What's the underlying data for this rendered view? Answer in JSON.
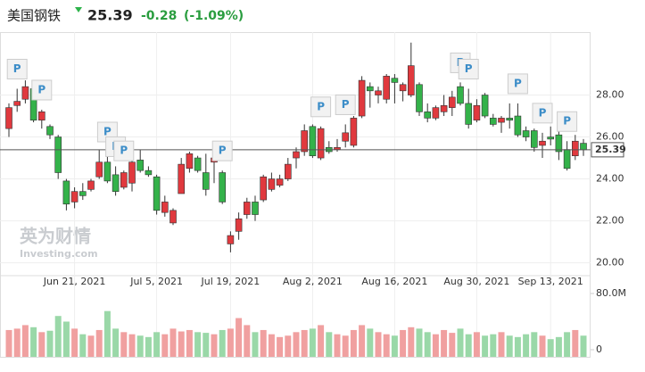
{
  "header": {
    "title": "美国钢铁",
    "price": 25.39,
    "change": -0.28,
    "change_percent": "(-1.09%)"
  },
  "watermark": {
    "brand": "英为财情",
    "site": "Investing.com"
  },
  "chart_data": {
    "type": "candlestick",
    "categories": [
      null,
      null,
      null,
      null,
      null,
      null,
      null,
      null,
      "Jun 21, 2021",
      null,
      null,
      null,
      null,
      null,
      null,
      null,
      null,
      null,
      "Jul 5, 2021",
      null,
      null,
      null,
      null,
      null,
      null,
      null,
      null,
      "Jul 19, 2021",
      null,
      null,
      null,
      null,
      null,
      null,
      null,
      null,
      null,
      "Aug 2, 2021",
      null,
      null,
      null,
      null,
      null,
      null,
      null,
      null,
      null,
      "Aug 16, 2021",
      null,
      null,
      null,
      null,
      null,
      null,
      null,
      null,
      null,
      "Aug 30, 2021",
      null,
      null,
      null,
      null,
      null,
      null,
      null,
      null,
      "Sep 13, 2021",
      null,
      null,
      null,
      null
    ],
    "open": [
      26.4,
      27.5,
      27.8,
      28.3,
      26.8,
      26.5,
      26.0,
      23.9,
      22.9,
      23.4,
      23.5,
      24.1,
      24.8,
      24.2,
      23.6,
      23.8,
      24.9,
      24.4,
      24.1,
      22.4,
      21.9,
      23.3,
      24.5,
      25.0,
      24.3,
      24.8,
      24.3,
      20.9,
      21.5,
      22.3,
      22.9,
      23.0,
      23.5,
      23.7,
      24.0,
      25.0,
      25.3,
      26.5,
      25.0,
      25.5,
      25.4,
      25.8,
      25.6,
      27.0,
      28.4,
      28.0,
      27.8,
      28.8,
      28.2,
      28.0,
      28.5,
      27.2,
      26.9,
      27.2,
      27.4,
      28.4,
      27.6,
      26.8,
      28.0,
      26.9,
      26.7,
      26.9,
      27.0,
      26.3,
      26.3,
      25.6,
      26.0,
      26.1,
      25.4,
      25.1,
      25.7
    ],
    "high": [
      27.6,
      28.3,
      28.7,
      28.4,
      27.3,
      26.6,
      26.1,
      24.0,
      23.6,
      23.8,
      24.0,
      25.4,
      25.3,
      24.6,
      24.4,
      25.0,
      25.4,
      24.6,
      24.2,
      23.2,
      22.6,
      25.0,
      25.3,
      25.1,
      25.2,
      25.2,
      24.4,
      21.5,
      22.4,
      23.1,
      23.2,
      24.2,
      24.3,
      24.2,
      25.0,
      25.5,
      26.6,
      26.6,
      26.5,
      25.8,
      25.9,
      26.6,
      27.0,
      28.9,
      28.6,
      28.4,
      29.0,
      29.0,
      28.6,
      30.5,
      28.6,
      27.6,
      27.5,
      28.0,
      28.2,
      28.6,
      28.3,
      27.8,
      28.1,
      27.1,
      27.0,
      27.6,
      27.6,
      26.5,
      26.4,
      26.2,
      26.5,
      26.5,
      25.8,
      26.1,
      25.9
    ],
    "low": [
      26.0,
      27.2,
      27.6,
      26.7,
      26.4,
      25.9,
      24.0,
      22.5,
      22.6,
      23.0,
      23.4,
      24.0,
      23.8,
      23.2,
      23.5,
      23.4,
      24.3,
      24.1,
      22.3,
      22.2,
      21.8,
      23.3,
      24.3,
      24.3,
      23.2,
      23.8,
      22.8,
      20.5,
      21.1,
      22.1,
      22.0,
      22.9,
      23.4,
      23.6,
      23.9,
      24.5,
      25.1,
      25.0,
      24.9,
      25.2,
      25.3,
      25.5,
      25.5,
      26.9,
      27.4,
      27.6,
      27.6,
      27.6,
      27.7,
      27.9,
      27.0,
      26.7,
      26.8,
      27.0,
      27.0,
      27.5,
      26.4,
      26.7,
      26.9,
      26.5,
      26.2,
      26.4,
      26.0,
      25.8,
      25.3,
      25.0,
      25.6,
      24.9,
      24.4,
      24.9,
      25.1
    ],
    "close": [
      27.4,
      27.7,
      28.4,
      26.8,
      27.2,
      26.1,
      24.3,
      22.8,
      23.4,
      23.2,
      23.9,
      24.8,
      23.9,
      23.4,
      24.3,
      24.8,
      24.4,
      24.2,
      22.5,
      22.9,
      22.5,
      24.7,
      25.2,
      24.4,
      23.5,
      25.0,
      22.9,
      21.3,
      22.1,
      22.9,
      22.3,
      24.1,
      24.0,
      24.0,
      24.7,
      25.3,
      26.3,
      25.1,
      26.4,
      25.3,
      25.5,
      26.2,
      26.9,
      28.7,
      28.2,
      28.2,
      28.9,
      28.6,
      28.5,
      29.4,
      27.2,
      26.9,
      27.4,
      27.5,
      27.9,
      27.6,
      26.6,
      27.5,
      27.0,
      26.6,
      26.9,
      26.8,
      26.1,
      26.0,
      25.5,
      25.8,
      25.9,
      25.3,
      24.5,
      25.8,
      25.39
    ],
    "volume": [
      28,
      30,
      35,
      32,
      25,
      27,
      48,
      40,
      30,
      22,
      20,
      28,
      55,
      30,
      25,
      22,
      20,
      18,
      25,
      22,
      30,
      26,
      28,
      25,
      24,
      22,
      28,
      30,
      45,
      35,
      25,
      28,
      22,
      18,
      20,
      25,
      28,
      30,
      35,
      25,
      22,
      20,
      28,
      35,
      30,
      25,
      22,
      20,
      28,
      32,
      30,
      25,
      22,
      28,
      24,
      30,
      22,
      25,
      20,
      22,
      25,
      20,
      18,
      22,
      25,
      20,
      15,
      18,
      25,
      28,
      20
    ],
    "up_color": "#e0393e",
    "down_color": "#34b24a",
    "up_volume_color": "#f0a0a0",
    "down_volume_color": "#9ad8a8",
    "ylim": [
      19.6,
      31.0
    ],
    "yticks": [
      {
        "value": 20,
        "label": "20.00"
      },
      {
        "value": 22,
        "label": "22.00"
      },
      {
        "value": 24,
        "label": "24.00"
      },
      {
        "value": 26,
        "label": "26.00"
      },
      {
        "value": 28,
        "label": "28.00"
      }
    ],
    "volume_ylim": [
      0,
      80
    ],
    "volume_yticks": [
      0,
      {
        "value": 80,
        "label": "80.0M"
      }
    ],
    "grid": true,
    "annotations": [
      {
        "index": 1,
        "text": "P"
      },
      {
        "index": 4,
        "text": "P"
      },
      {
        "index": 12,
        "text": "P"
      },
      {
        "index": 13,
        "text": "P"
      },
      {
        "index": 14,
        "text": "P"
      },
      {
        "index": 26,
        "text": "P"
      },
      {
        "index": 38,
        "text": "P"
      },
      {
        "index": 41,
        "text": "P"
      },
      {
        "index": 55,
        "text": "P"
      },
      {
        "index": 56,
        "text": "P"
      },
      {
        "index": 62,
        "text": "P"
      },
      {
        "index": 65,
        "text": "P"
      },
      {
        "index": 68,
        "text": "P"
      }
    ]
  }
}
